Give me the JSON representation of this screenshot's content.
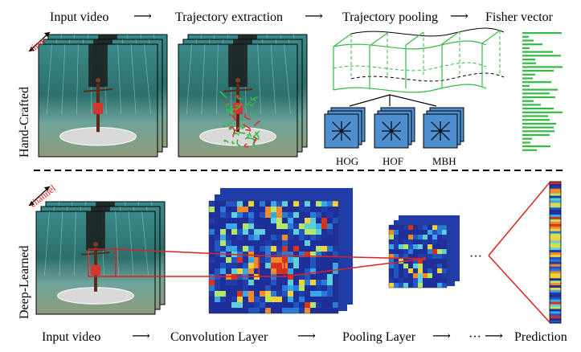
{
  "top": {
    "steps": [
      "Input video",
      "Trajectory extraction",
      "Trajectory pooling",
      "Fisher vector"
    ],
    "row_label": "Hand-Crafted",
    "axis_label": "time",
    "descriptors": [
      "HOG",
      "HOF",
      "MBH"
    ]
  },
  "bottom": {
    "steps": [
      "Input video",
      "Convolution Layer",
      "Pooling Layer",
      "···",
      "Prediction"
    ],
    "row_label": "Deep-Learned",
    "axis_label": "channel",
    "ellipsis": "···"
  },
  "colors": {
    "accent_red": "#dd2222",
    "trajectory_green": "#33bb44",
    "descriptor_blue": "#4f8fd0",
    "heatmap_base": "#1f2f9a"
  }
}
